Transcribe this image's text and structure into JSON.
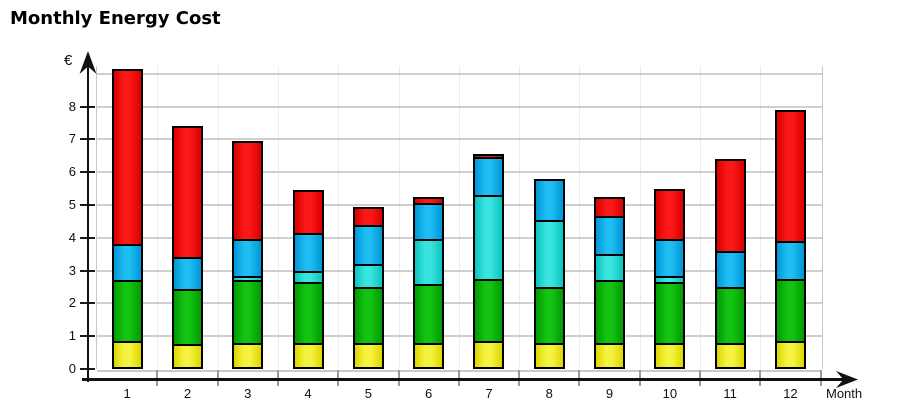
{
  "title": "Monthly Energy Cost",
  "axes": {
    "y_unit_label": "€",
    "x_axis_label": "Month"
  },
  "chart_data": {
    "type": "bar",
    "stacked": true,
    "title": "Monthly Energy Cost",
    "xlabel": "Month",
    "ylabel": "€",
    "categories": [
      "1",
      "2",
      "3",
      "4",
      "5",
      "6",
      "7",
      "8",
      "9",
      "10",
      "11",
      "12"
    ],
    "yticks": [
      0,
      1,
      2,
      3,
      4,
      5,
      6,
      7,
      8
    ],
    "ylim": [
      0,
      9.3
    ],
    "grid": true,
    "legend": "none",
    "series": [
      {
        "name": "yellow-segment",
        "color": "#ddd600",
        "color_light": "#f6f340",
        "values": [
          0.85,
          0.75,
          0.8,
          0.8,
          0.8,
          0.8,
          0.85,
          0.8,
          0.8,
          0.8,
          0.8,
          0.85
        ]
      },
      {
        "name": "green-segment",
        "color": "#009b00",
        "color_light": "#12c312",
        "values": [
          1.85,
          1.7,
          1.9,
          1.85,
          1.7,
          1.8,
          1.9,
          1.7,
          1.9,
          1.85,
          1.7,
          1.9
        ]
      },
      {
        "name": "cyan-segment",
        "color": "#0cc4c0",
        "color_light": "#3ae4de",
        "values": [
          0,
          0,
          0.15,
          0.35,
          0.7,
          1.35,
          2.55,
          2.05,
          0.8,
          0.2,
          0,
          0
        ]
      },
      {
        "name": "blue-segment",
        "color": "#0096d6",
        "color_light": "#1ebdf2",
        "values": [
          1.1,
          0.95,
          1.1,
          1.15,
          1.2,
          1.1,
          1.15,
          1.25,
          1.15,
          1.1,
          1.1,
          1.15
        ]
      },
      {
        "name": "red-segment",
        "color": "#d90000",
        "color_light": "#fb1818",
        "values": [
          5.35,
          4.0,
          3.0,
          1.3,
          0.55,
          0.2,
          0.1,
          0,
          0.6,
          1.55,
          2.8,
          4.0
        ]
      }
    ],
    "stack_totals": [
      9.15,
      7.4,
      6.95,
      5.45,
      4.95,
      5.25,
      6.55,
      5.8,
      5.25,
      5.5,
      6.4,
      7.9
    ]
  }
}
